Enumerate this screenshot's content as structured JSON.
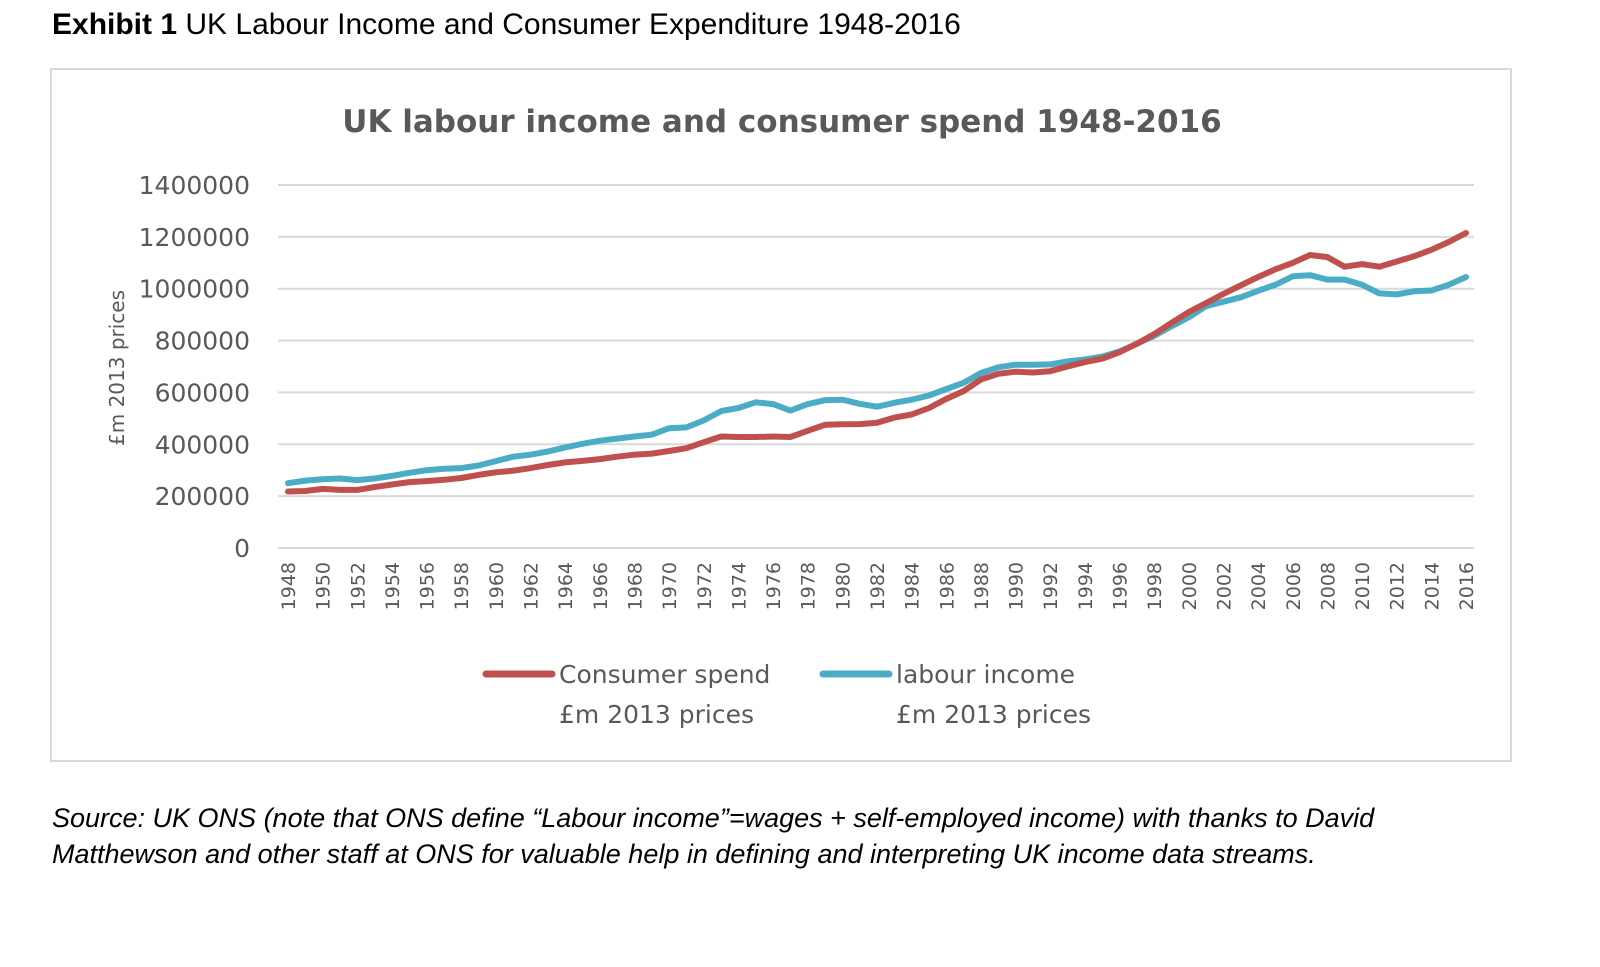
{
  "exhibit": {
    "label": "Exhibit 1",
    "title": "UK Labour Income and Consumer Expenditure 1948-2016"
  },
  "source_note": "Source: UK ONS (note that ONS define “Labour income”=wages + self-employed income) with thanks to David Matthewson and other staff at ONS for valuable help in defining and interpreting UK income data streams.",
  "colors": {
    "consumer_spend": "#c0504d",
    "labour_income": "#4bacc6",
    "grid": "#d9d9d9",
    "axis_text": "#595959"
  },
  "chart_data": {
    "type": "line",
    "title": "UK labour income and consumer spend 1948-2016",
    "xlabel": "",
    "ylabel": "£m 2013 prices",
    "ylim": [
      0,
      1400000
    ],
    "yticks": [
      "0",
      "200000",
      "400000",
      "600000",
      "800000",
      "1000000",
      "1200000",
      "1400000"
    ],
    "ytick_values": [
      0,
      200000,
      400000,
      600000,
      800000,
      1000000,
      1200000,
      1400000
    ],
    "xticks": [
      "1948",
      "1950",
      "1952",
      "1954",
      "1956",
      "1958",
      "1960",
      "1962",
      "1964",
      "1966",
      "1968",
      "1970",
      "1972",
      "1974",
      "1976",
      "1978",
      "1980",
      "1982",
      "1984",
      "1986",
      "1988",
      "1990",
      "1992",
      "1994",
      "1996",
      "1998",
      "2000",
      "2002",
      "2004",
      "2006",
      "2008",
      "2010",
      "2012",
      "2014",
      "2016"
    ],
    "grid": true,
    "legend_position": "bottom",
    "x": [
      1948,
      1949,
      1950,
      1951,
      1952,
      1953,
      1954,
      1955,
      1956,
      1957,
      1958,
      1959,
      1960,
      1961,
      1962,
      1963,
      1964,
      1965,
      1966,
      1967,
      1968,
      1969,
      1970,
      1971,
      1972,
      1973,
      1974,
      1975,
      1976,
      1977,
      1978,
      1979,
      1980,
      1981,
      1982,
      1983,
      1984,
      1985,
      1986,
      1987,
      1988,
      1989,
      1990,
      1991,
      1992,
      1993,
      1994,
      1995,
      1996,
      1997,
      1998,
      1999,
      2000,
      2001,
      2002,
      2003,
      2004,
      2005,
      2006,
      2007,
      2008,
      2009,
      2010,
      2011,
      2012,
      2013,
      2014,
      2015,
      2016
    ],
    "series": [
      {
        "name": "Consumer spend £m 2013 prices",
        "legend_line1": "Consumer spend",
        "legend_line2": "£m 2013 prices",
        "color": "#c0504d",
        "values": [
          218000,
          220000,
          228000,
          224000,
          224000,
          235000,
          245000,
          254000,
          258000,
          263000,
          270000,
          282000,
          292000,
          298000,
          308000,
          320000,
          330000,
          336000,
          343000,
          352000,
          360000,
          364000,
          374000,
          385000,
          408000,
          430000,
          428000,
          428000,
          430000,
          428000,
          452000,
          475000,
          477000,
          478000,
          483000,
          503000,
          515000,
          540000,
          575000,
          605000,
          650000,
          672000,
          680000,
          677000,
          682000,
          700000,
          717000,
          730000,
          755000,
          788000,
          825000,
          868000,
          910000,
          945000,
          980000,
          1013000,
          1045000,
          1075000,
          1100000,
          1130000,
          1122000,
          1085000,
          1095000,
          1085000,
          1105000,
          1125000,
          1150000,
          1180000,
          1215000
        ]
      },
      {
        "name": "labour income £m 2013 prices",
        "legend_line1": "labour income",
        "legend_line2": "£m 2013 prices",
        "color": "#4bacc6",
        "values": [
          250000,
          260000,
          265000,
          268000,
          262000,
          268000,
          278000,
          290000,
          300000,
          306000,
          308000,
          318000,
          335000,
          352000,
          360000,
          372000,
          388000,
          402000,
          414000,
          422000,
          430000,
          437000,
          462000,
          465000,
          492000,
          528000,
          540000,
          562000,
          555000,
          530000,
          555000,
          570000,
          572000,
          556000,
          545000,
          560000,
          572000,
          588000,
          613000,
          637000,
          675000,
          697000,
          707000,
          707000,
          708000,
          720000,
          727000,
          738000,
          758000,
          788000,
          818000,
          855000,
          890000,
          933000,
          950000,
          967000,
          992000,
          1015000,
          1048000,
          1052000,
          1035000,
          1035000,
          1015000,
          982000,
          978000,
          990000,
          993000,
          1015000,
          1045000
        ]
      }
    ]
  }
}
